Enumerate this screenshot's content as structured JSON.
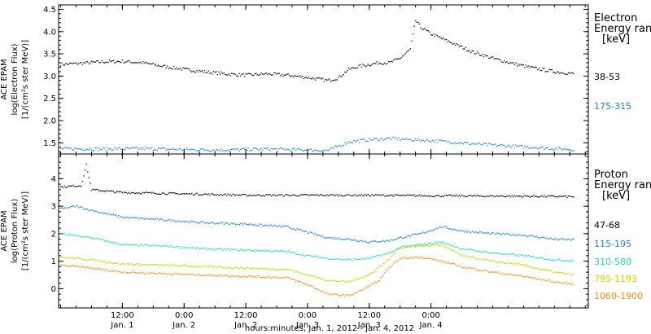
{
  "chart_data": [
    {
      "type": "scatter",
      "panel": "top",
      "ylabel": [
        "ACE EPAM",
        "log(Electron Flux)",
        "[1/(cm²s ster MeV)]"
      ],
      "ylim": [
        1.25,
        4.6
      ],
      "yticks": [
        1.5,
        2.0,
        2.5,
        3.0,
        3.5,
        4.0,
        4.5
      ],
      "ytick_labels": [
        "1.5",
        "2.0",
        "2.5",
        "3.0",
        "3.5",
        "4.0",
        "4.5"
      ],
      "legend_title": [
        "Electron",
        "Energy ranges",
        "[keV]"
      ],
      "legend_placement": "right",
      "series": [
        {
          "name": "38-53",
          "color": "#000000",
          "points": [
            [
              0,
              3.26
            ],
            [
              4,
              3.29
            ],
            [
              8,
              3.32
            ],
            [
              12,
              3.33
            ],
            [
              16,
              3.3
            ],
            [
              20,
              3.22
            ],
            [
              24,
              3.15
            ],
            [
              28,
              3.1
            ],
            [
              32,
              3.05
            ],
            [
              36,
              3.02
            ],
            [
              40,
              3.05
            ],
            [
              44,
              3.02
            ],
            [
              48,
              2.97
            ],
            [
              52,
              2.9
            ],
            [
              54,
              2.96
            ],
            [
              56,
              3.15
            ],
            [
              58,
              3.22
            ],
            [
              62,
              3.3
            ],
            [
              64,
              3.3
            ],
            [
              66,
              3.4
            ],
            [
              68,
              3.6
            ],
            [
              69,
              4.25
            ],
            [
              70,
              4.1
            ],
            [
              72,
              3.95
            ],
            [
              76,
              3.75
            ],
            [
              80,
              3.55
            ],
            [
              84,
              3.4
            ],
            [
              88,
              3.28
            ],
            [
              92,
              3.18
            ],
            [
              96,
              3.1
            ],
            [
              100,
              3.05
            ]
          ]
        },
        {
          "name": "175-315",
          "color": "#1e7fd0",
          "points": [
            [
              0,
              1.37
            ],
            [
              8,
              1.36
            ],
            [
              16,
              1.37
            ],
            [
              24,
              1.35
            ],
            [
              32,
              1.34
            ],
            [
              40,
              1.36
            ],
            [
              48,
              1.34
            ],
            [
              52,
              1.33
            ],
            [
              56,
              1.52
            ],
            [
              60,
              1.57
            ],
            [
              64,
              1.6
            ],
            [
              68,
              1.57
            ],
            [
              72,
              1.55
            ],
            [
              76,
              1.52
            ],
            [
              80,
              1.48
            ],
            [
              84,
              1.45
            ],
            [
              88,
              1.42
            ],
            [
              92,
              1.4
            ],
            [
              96,
              1.37
            ],
            [
              100,
              1.35
            ]
          ]
        }
      ]
    },
    {
      "type": "scatter",
      "panel": "bottom",
      "ylabel": [
        "ACE EPAM",
        "log(Proton Flux)",
        "[1/(cm²s ster MeV)]"
      ],
      "ylim": [
        -0.7,
        4.9
      ],
      "yticks": [
        0,
        1,
        2,
        3,
        4
      ],
      "ytick_labels": [
        "0",
        "1",
        "2",
        "3",
        "4"
      ],
      "legend_title": [
        "Proton",
        "Energy ranges",
        "[keV]"
      ],
      "legend_placement": "right",
      "series": [
        {
          "name": "47-68",
          "color": "#000000",
          "points": [
            [
              0,
              3.7
            ],
            [
              4,
              3.75
            ],
            [
              5,
              4.5
            ],
            [
              6,
              3.6
            ],
            [
              12,
              3.5
            ],
            [
              24,
              3.45
            ],
            [
              36,
              3.4
            ],
            [
              48,
              3.4
            ],
            [
              60,
              3.4
            ],
            [
              72,
              3.38
            ],
            [
              84,
              3.37
            ],
            [
              100,
              3.35
            ]
          ]
        },
        {
          "name": "115-195",
          "color": "#1e7fd0",
          "points": [
            [
              0,
              2.9
            ],
            [
              3,
              3.0
            ],
            [
              6,
              2.85
            ],
            [
              12,
              2.6
            ],
            [
              20,
              2.5
            ],
            [
              28,
              2.4
            ],
            [
              36,
              2.35
            ],
            [
              44,
              2.25
            ],
            [
              48,
              2.05
            ],
            [
              52,
              1.85
            ],
            [
              56,
              1.8
            ],
            [
              60,
              1.7
            ],
            [
              64,
              1.75
            ],
            [
              66,
              1.85
            ],
            [
              70,
              2.0
            ],
            [
              74,
              2.25
            ],
            [
              78,
              2.1
            ],
            [
              84,
              2.0
            ],
            [
              90,
              1.95
            ],
            [
              96,
              1.8
            ],
            [
              100,
              1.78
            ]
          ]
        },
        {
          "name": "310-580",
          "color": "#22d3c8",
          "points": [
            [
              0,
              2.0
            ],
            [
              6,
              1.85
            ],
            [
              12,
              1.6
            ],
            [
              20,
              1.55
            ],
            [
              28,
              1.45
            ],
            [
              36,
              1.4
            ],
            [
              44,
              1.35
            ],
            [
              48,
              1.2
            ],
            [
              52,
              1.1
            ],
            [
              56,
              1.05
            ],
            [
              60,
              1.1
            ],
            [
              64,
              1.3
            ],
            [
              66,
              1.5
            ],
            [
              70,
              1.6
            ],
            [
              74,
              1.7
            ],
            [
              78,
              1.45
            ],
            [
              84,
              1.3
            ],
            [
              90,
              1.2
            ],
            [
              96,
              1.05
            ],
            [
              100,
              1.02
            ]
          ]
        },
        {
          "name": "795-1193",
          "color": "#c4d600",
          "points": [
            [
              0,
              1.15
            ],
            [
              6,
              1.05
            ],
            [
              12,
              0.9
            ],
            [
              20,
              0.85
            ],
            [
              28,
              0.8
            ],
            [
              36,
              0.75
            ],
            [
              44,
              0.7
            ],
            [
              48,
              0.5
            ],
            [
              52,
              0.3
            ],
            [
              56,
              0.25
            ],
            [
              60,
              0.5
            ],
            [
              64,
              1.1
            ],
            [
              66,
              1.5
            ],
            [
              70,
              1.55
            ],
            [
              74,
              1.6
            ],
            [
              78,
              1.2
            ],
            [
              84,
              1.0
            ],
            [
              90,
              0.85
            ],
            [
              96,
              0.6
            ],
            [
              100,
              0.5
            ]
          ]
        },
        {
          "name": "1060-1900",
          "color": "#f08c1a",
          "points": [
            [
              0,
              0.85
            ],
            [
              6,
              0.75
            ],
            [
              12,
              0.6
            ],
            [
              20,
              0.55
            ],
            [
              28,
              0.5
            ],
            [
              36,
              0.45
            ],
            [
              44,
              0.4
            ],
            [
              48,
              0.15
            ],
            [
              52,
              -0.2
            ],
            [
              56,
              -0.25
            ],
            [
              58,
              -0.1
            ],
            [
              62,
              0.3
            ],
            [
              64,
              0.8
            ],
            [
              66,
              1.1
            ],
            [
              70,
              1.15
            ],
            [
              74,
              1.0
            ],
            [
              78,
              0.8
            ],
            [
              84,
              0.6
            ],
            [
              90,
              0.45
            ],
            [
              96,
              0.25
            ],
            [
              100,
              0.15
            ]
          ]
        }
      ]
    }
  ],
  "x_axis": {
    "range_hours": [
      -0.4,
      102.6
    ],
    "ticks": [
      {
        "hours": 12,
        "line1": "12:00",
        "line2": "Jan. 1"
      },
      {
        "hours": 24,
        "line1": "0:00",
        "line2": "Jan. 2"
      },
      {
        "hours": 36,
        "line1": "12:00",
        "line2": "Jan. 2"
      },
      {
        "hours": 48,
        "line1": "0:00",
        "line2": "Jan. 3"
      },
      {
        "hours": 60,
        "line1": "12:00",
        "line2": "Jan. 3"
      },
      {
        "hours": 72,
        "line1": "0:00",
        "line2": "Jan. 4"
      }
    ],
    "minor_tick_step_hours": 3,
    "xlabel": "hours:minutes, Jan.  1, 2012 - Jan.  4, 2012"
  }
}
